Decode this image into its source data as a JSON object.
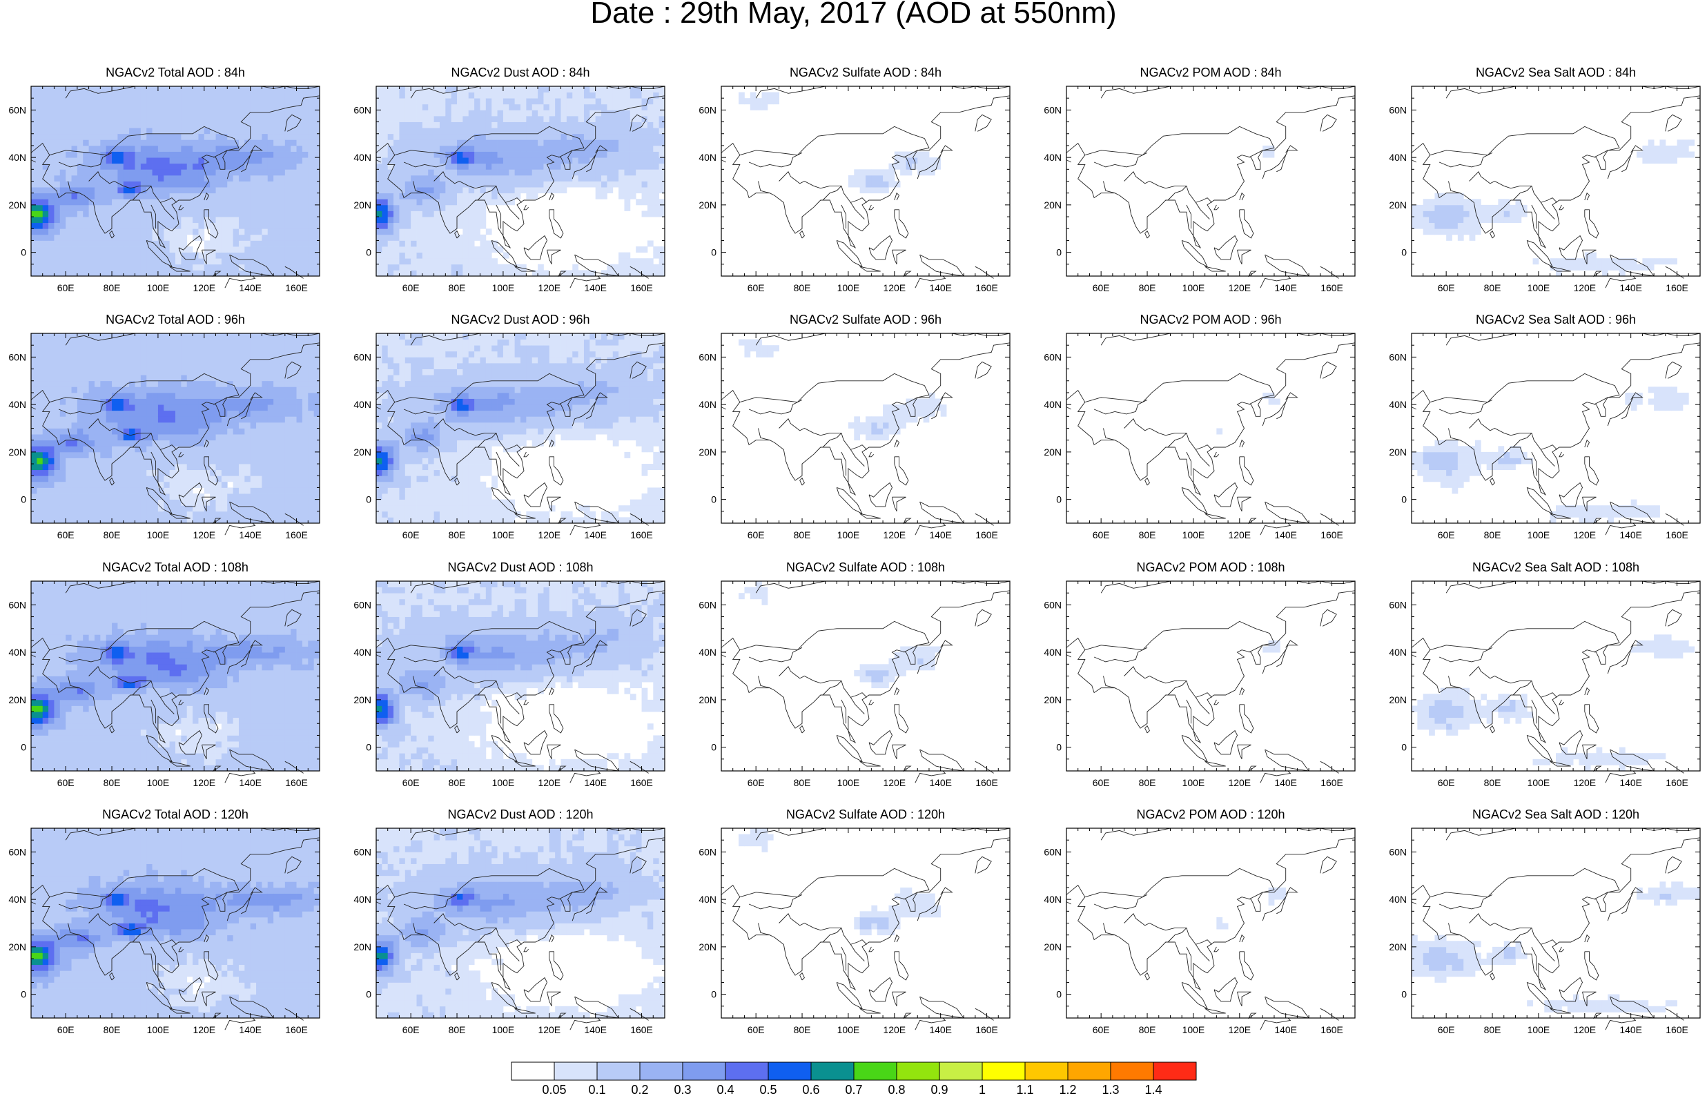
{
  "title": "Date : 29th May, 2017 (AOD at 550nm)",
  "map": {
    "lon_range": [
      45,
      170
    ],
    "lat_range": [
      -10,
      70
    ],
    "lon_ticks": [
      "60E",
      "80E",
      "100E",
      "120E",
      "140E",
      "160E"
    ],
    "lat_ticks": [
      "60N",
      "40N",
      "20N",
      "0"
    ]
  },
  "colorbar": {
    "colors": [
      "#ffffff",
      "#d8e3fb",
      "#b8cbf7",
      "#9ab3f3",
      "#7f9cef",
      "#5d6ff0",
      "#0f5ff0",
      "#0a9090",
      "#49d617",
      "#93e40e",
      "#c8ef45",
      "#ffff00",
      "#ffc700",
      "#ffa600",
      "#ff7a00",
      "#ff2b16"
    ],
    "labels": [
      "0.05",
      "0.1",
      "0.2",
      "0.3",
      "0.4",
      "0.5",
      "0.6",
      "0.7",
      "0.8",
      "0.9",
      "1",
      "1.1",
      "1.2",
      "1.3",
      "1.4"
    ]
  },
  "panels": [
    {
      "title": "NGACv2 Total AOD : 84h",
      "species": "total",
      "hour": 84
    },
    {
      "title": "NGACv2 Dust AOD : 84h",
      "species": "dust",
      "hour": 84
    },
    {
      "title": "NGACv2 Sulfate AOD : 84h",
      "species": "sulfate",
      "hour": 84
    },
    {
      "title": "NGACv2 POM AOD : 84h",
      "species": "pom",
      "hour": 84
    },
    {
      "title": "NGACv2 Sea Salt AOD : 84h",
      "species": "seasalt",
      "hour": 84
    },
    {
      "title": "NGACv2 Total AOD : 96h",
      "species": "total",
      "hour": 96
    },
    {
      "title": "NGACv2 Dust AOD : 96h",
      "species": "dust",
      "hour": 96
    },
    {
      "title": "NGACv2 Sulfate AOD : 96h",
      "species": "sulfate",
      "hour": 96
    },
    {
      "title": "NGACv2 POM AOD : 96h",
      "species": "pom",
      "hour": 96
    },
    {
      "title": "NGACv2 Sea Salt AOD : 96h",
      "species": "seasalt",
      "hour": 96
    },
    {
      "title": "NGACv2 Total AOD : 108h",
      "species": "total",
      "hour": 108
    },
    {
      "title": "NGACv2 Dust AOD : 108h",
      "species": "dust",
      "hour": 108
    },
    {
      "title": "NGACv2 Sulfate AOD : 108h",
      "species": "sulfate",
      "hour": 108
    },
    {
      "title": "NGACv2 POM AOD : 108h",
      "species": "pom",
      "hour": 108
    },
    {
      "title": "NGACv2 Sea Salt AOD : 108h",
      "species": "seasalt",
      "hour": 108
    },
    {
      "title": "NGACv2 Total AOD : 120h",
      "species": "total",
      "hour": 120
    },
    {
      "title": "NGACv2 Dust AOD : 120h",
      "species": "dust",
      "hour": 120
    },
    {
      "title": "NGACv2 Sulfate AOD : 120h",
      "species": "sulfate",
      "hour": 120
    },
    {
      "title": "NGACv2 POM AOD : 120h",
      "species": "pom",
      "hour": 120
    },
    {
      "title": "NGACv2 Sea Salt  AOD : 120h",
      "species": "seasalt",
      "hour": 120
    }
  ]
}
